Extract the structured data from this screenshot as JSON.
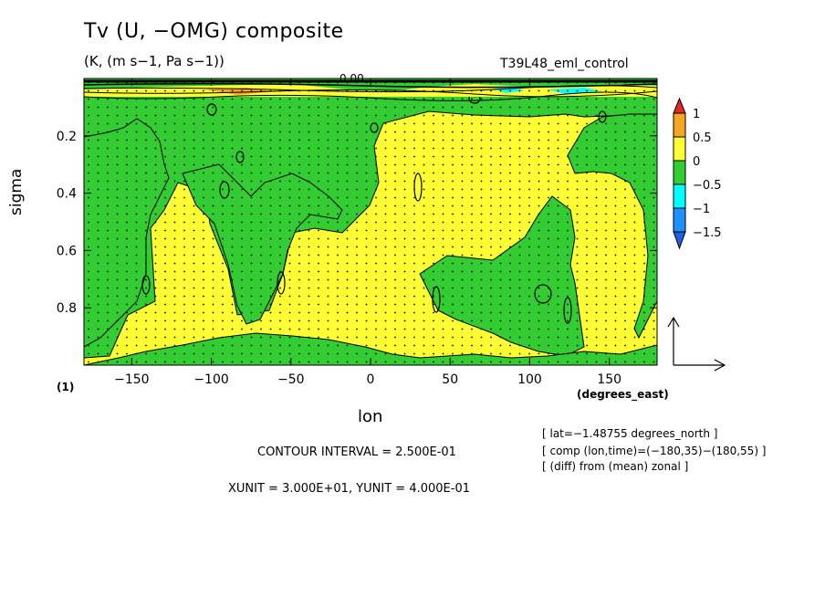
{
  "chart_data": {
    "type": "contour",
    "title": "Tv (U, −OMG) composite",
    "subtitle": "(K, (m s−1, Pa s−1))",
    "run_name": "T39L48_eml_control",
    "xlabel": "lon",
    "x_units": "(degrees_east)",
    "ylabel": "sigma",
    "panel_label": "(1)",
    "xlim": [
      -180,
      180
    ],
    "ylim": [
      1.0,
      0.0
    ],
    "x_ticks": [
      -150,
      -100,
      -50,
      0,
      50,
      100,
      150
    ],
    "x_tick_labels": [
      "−150",
      "−100",
      "−50",
      "0",
      "50",
      "100",
      "150"
    ],
    "y_ticks": [
      0.2,
      0.4,
      0.6,
      0.8
    ],
    "y_tick_labels": [
      "0.2",
      "0.4",
      "0.6",
      "0.8"
    ],
    "colorbar": {
      "levels": [
        1,
        0.5,
        0,
        -0.5,
        -1,
        -1.5
      ],
      "labels": [
        "1",
        "0.5",
        "0",
        "−0.5",
        "−1",
        "−1.5"
      ],
      "colors": [
        "#e8262a",
        "#f5a623",
        "#ffff33",
        "#33cc33",
        "#00ffff",
        "#1e90ff",
        "#1f5fe0"
      ]
    },
    "background_color": "#ffff33",
    "negative_color": "#33cc33",
    "contour_label": "0.00",
    "contour_interval": "CONTOUR INTERVAL = 2.500E-01",
    "vector_units": "XUNIT = 3.000E+01, YUNIT = 4.000E-01",
    "info_lines": [
      "[ lat=−1.48755 degrees_north ]",
      "[ comp (lon,time)=(−180,35)−(180,55) ]",
      "[ (diff) from (mean) zonal ]"
    ]
  }
}
